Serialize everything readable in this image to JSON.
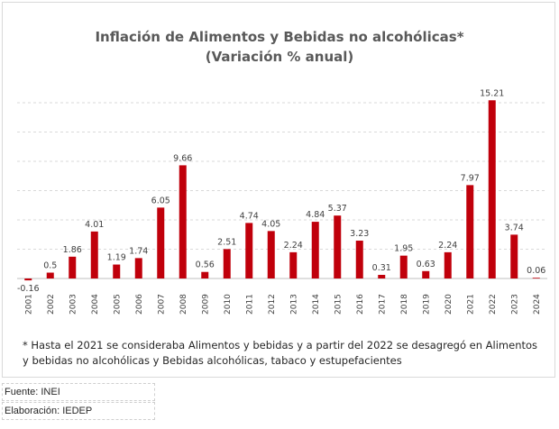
{
  "chart_data": {
    "type": "bar",
    "title": "Inflación de Alimentos y Bebidas no alcohólicas*",
    "subtitle": "(Variación % anual)",
    "categories": [
      "2001",
      "2002",
      "2003",
      "2004",
      "2005",
      "2006",
      "2007",
      "2008",
      "2009",
      "2010",
      "2011",
      "2012",
      "2013",
      "2014",
      "2015",
      "2016",
      "2017",
      "2018",
      "2019",
      "2020",
      "2021",
      "2022",
      "2023",
      "2024"
    ],
    "values": [
      -0.16,
      0.5,
      1.86,
      4.01,
      1.19,
      1.74,
      6.05,
      9.66,
      0.56,
      2.51,
      4.74,
      4.05,
      2.24,
      4.84,
      5.37,
      3.23,
      0.31,
      1.95,
      0.63,
      2.24,
      7.97,
      15.21,
      3.74,
      0.06
    ],
    "data_labels": [
      "-0.16",
      "0.5",
      "1.86",
      "4.01",
      "1.19",
      "1.74",
      "6.05",
      "9.66",
      "0.56",
      "2.51",
      "4.74",
      "4.05",
      "2.24",
      "4.84",
      "5.37",
      "3.23",
      "0.31",
      "1.95",
      "0.63",
      "2.24",
      "7.97",
      "15.21",
      "3.74",
      "0.06"
    ],
    "ylim": [
      -0.5,
      16
    ],
    "gridlines": true,
    "bar_color": "#c0000b",
    "xlabel": "",
    "ylabel": "",
    "footnote_line1": "* Hasta el 2021 se consideraba Alimentos y bebidas y a partir del 2022 se desagregó en Alimentos",
    "footnote_line2": "y bebidas no alcohólicas y Bebidas alcohólicas, tabaco y estupefacientes"
  },
  "sources": {
    "fuente": "Fuente: INEI",
    "elaboracion": "Elaboración: IEDEP"
  }
}
